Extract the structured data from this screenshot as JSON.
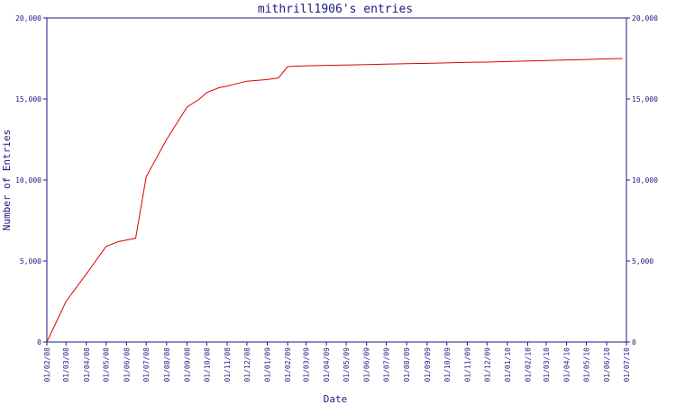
{
  "chart_data": {
    "type": "line",
    "title": "mithrill1906's entries",
    "xlabel": "Date",
    "ylabel": "Number of Entries",
    "ylim": [
      0,
      20000
    ],
    "y_ticks": [
      0,
      5000,
      10000,
      15000,
      20000
    ],
    "y_tick_labels": [
      "0",
      "5,000",
      "10,000",
      "15,000",
      "20,000"
    ],
    "x_tick_labels": [
      "01/02/08",
      "01/03/08",
      "01/04/08",
      "01/05/08",
      "01/06/08",
      "01/07/08",
      "01/08/08",
      "01/09/08",
      "01/10/08",
      "01/11/08",
      "01/12/08",
      "01/01/09",
      "01/02/09",
      "01/03/09",
      "01/04/09",
      "01/05/09",
      "01/06/09",
      "01/07/09",
      "01/08/09",
      "01/09/09",
      "01/10/09",
      "01/11/09",
      "01/12/09",
      "01/01/10",
      "01/02/10",
      "01/03/10",
      "01/04/10",
      "01/05/10",
      "01/06/10",
      "01/07/10"
    ],
    "grid": false,
    "series": [
      {
        "color": "#e00000",
        "x": [
          "01/02/08",
          "01/03/08",
          "01/04/08",
          "01/05/08",
          "2008-05-20",
          "2008-06-15",
          "01/07/08",
          "01/08/08",
          "01/09/08",
          "2008-09-20",
          "01/10/08",
          "2008-10-20",
          "01/11/08",
          "01/12/08",
          "01/01/09",
          "2009-01-18",
          "01/02/09",
          "01/03/09",
          "01/04/09",
          "01/05/09",
          "01/06/09",
          "01/07/09",
          "01/08/09",
          "01/09/09",
          "01/10/09",
          "01/11/09",
          "01/12/09",
          "01/01/10",
          "01/02/10",
          "01/03/10",
          "01/04/10",
          "01/05/10",
          "01/06/10",
          "2010-06-25"
        ],
        "values": [
          0,
          2500,
          4200,
          5900,
          6200,
          6400,
          10200,
          12500,
          14500,
          15000,
          15400,
          15700,
          15800,
          16100,
          16200,
          16300,
          17000,
          17050,
          17080,
          17100,
          17120,
          17150,
          17180,
          17200,
          17230,
          17260,
          17280,
          17310,
          17350,
          17380,
          17410,
          17440,
          17480,
          17500
        ]
      }
    ]
  }
}
